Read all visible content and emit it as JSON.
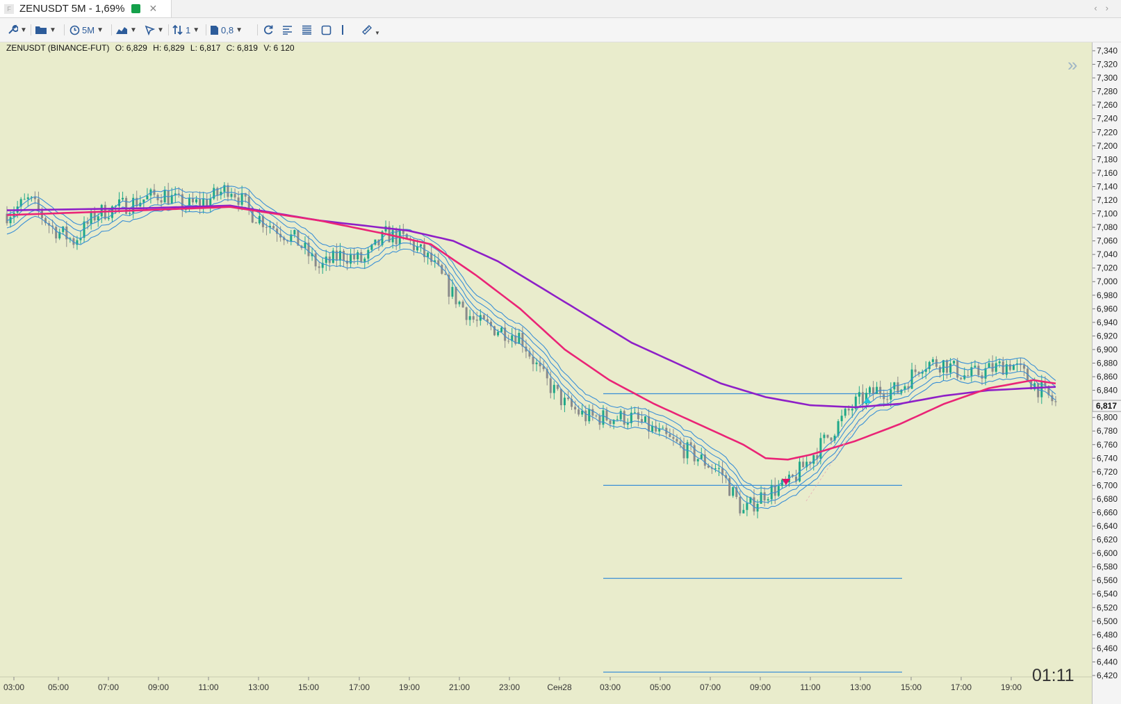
{
  "tab": {
    "icon_letter": "F",
    "title": "ZENUSDT 5M - 1,69%",
    "status_color": "#14a04a"
  },
  "toolbar": {
    "items": [
      {
        "name": "wrench-icon",
        "label": ""
      },
      {
        "name": "folder-icon",
        "label": ""
      },
      {
        "name": "timeframe",
        "label": "5M"
      },
      {
        "name": "chart-type-icon",
        "label": ""
      },
      {
        "name": "cursor-icon",
        "label": ""
      },
      {
        "name": "scale-selector",
        "label": "1"
      },
      {
        "name": "page-scale",
        "label": "0,8"
      },
      {
        "name": "refresh-icon",
        "label": ""
      },
      {
        "name": "align-icon",
        "label": ""
      },
      {
        "name": "list-icon",
        "label": ""
      },
      {
        "name": "square-icon",
        "label": ""
      },
      {
        "name": "vline-icon",
        "label": ""
      },
      {
        "name": "ruler-icon",
        "label": ""
      }
    ]
  },
  "info": {
    "symbol": "ZENUSDT (BINANCE-FUT)",
    "open": "O: 6,829",
    "high": "H: 6,829",
    "low": "L: 6,817",
    "close": "C: 6,819",
    "volume": "V: 6 120"
  },
  "clock": "01:11",
  "current_price": "6,817",
  "colors": {
    "background": "#e9eccc",
    "bull": "#1fa888",
    "bear": "#8a8a8a",
    "ribbon": "#3a8fd6",
    "ma_slow": "#8e1fc7",
    "ma_mid": "#ea2476",
    "levels": "#3a8fd6"
  },
  "chart_data": {
    "type": "candlestick",
    "symbol": "ZENUSDT",
    "timeframe": "5M",
    "x_ticks": [
      "03:00",
      "05:00",
      "07:00",
      "09:00",
      "11:00",
      "13:00",
      "15:00",
      "17:00",
      "19:00",
      "21:00",
      "23:00",
      "Сен28",
      "03:00",
      "05:00",
      "07:00",
      "09:00",
      "11:00",
      "13:00",
      "15:00",
      "17:00",
      "19:00"
    ],
    "y_ticks": [
      "7,340",
      "7,320",
      "7,300",
      "7,280",
      "7,260",
      "7,240",
      "7,220",
      "7,200",
      "7,180",
      "7,160",
      "7,140",
      "7,120",
      "7,100",
      "7,080",
      "7,060",
      "7,040",
      "7,020",
      "7,000",
      "6,980",
      "6,960",
      "6,940",
      "6,920",
      "6,900",
      "6,880",
      "6,860",
      "6,840",
      "6,820",
      "6,800",
      "6,780",
      "6,760",
      "6,740",
      "6,720",
      "6,700",
      "6,680",
      "6,660",
      "6,640",
      "6,620",
      "6,600",
      "6,580",
      "6,560",
      "6,540",
      "6,520",
      "6,500",
      "6,480",
      "6,460",
      "6,440",
      "6,420"
    ],
    "ylim": [
      6.42,
      7.34
    ],
    "price_path_hours": [
      [
        0,
        7.1
      ],
      [
        1,
        7.12
      ],
      [
        2,
        7.08
      ],
      [
        3,
        7.06
      ],
      [
        4,
        7.1
      ],
      [
        5,
        7.11
      ],
      [
        6,
        7.12
      ],
      [
        7,
        7.13
      ],
      [
        8,
        7.11
      ],
      [
        9,
        7.12
      ],
      [
        10,
        7.14
      ],
      [
        11,
        7.1
      ],
      [
        12,
        7.08
      ],
      [
        13,
        7.06
      ],
      [
        14,
        7.02
      ],
      [
        15,
        7.04
      ],
      [
        16,
        7.03
      ],
      [
        17,
        7.07
      ],
      [
        18,
        7.06
      ],
      [
        19,
        7.03
      ],
      [
        20,
        6.98
      ],
      [
        21,
        6.94
      ],
      [
        22,
        6.93
      ],
      [
        23,
        6.92
      ],
      [
        24,
        6.86
      ],
      [
        25,
        6.82
      ],
      [
        26,
        6.8
      ],
      [
        27,
        6.8
      ],
      [
        28,
        6.8
      ],
      [
        29,
        6.78
      ],
      [
        30,
        6.76
      ],
      [
        31,
        6.74
      ],
      [
        32,
        6.72
      ],
      [
        33,
        6.66
      ],
      [
        34,
        6.69
      ],
      [
        35,
        6.7
      ],
      [
        36,
        6.74
      ],
      [
        37,
        6.78
      ],
      [
        38,
        6.82
      ],
      [
        39,
        6.84
      ],
      [
        40,
        6.84
      ],
      [
        41,
        6.88
      ],
      [
        42,
        6.88
      ],
      [
        43,
        6.86
      ],
      [
        44,
        6.87
      ],
      [
        45,
        6.88
      ],
      [
        46,
        6.85
      ],
      [
        47,
        6.82
      ]
    ],
    "ma_slow_hours": [
      [
        0,
        7.105
      ],
      [
        6,
        7.108
      ],
      [
        10,
        7.112
      ],
      [
        14,
        7.09
      ],
      [
        18,
        7.075
      ],
      [
        20,
        7.06
      ],
      [
        22,
        7.03
      ],
      [
        24,
        6.99
      ],
      [
        26,
        6.95
      ],
      [
        28,
        6.91
      ],
      [
        30,
        6.88
      ],
      [
        32,
        6.85
      ],
      [
        34,
        6.83
      ],
      [
        36,
        6.818
      ],
      [
        38,
        6.815
      ],
      [
        40,
        6.82
      ],
      [
        42,
        6.832
      ],
      [
        44,
        6.84
      ],
      [
        47,
        6.845
      ]
    ],
    "ma_mid_hours": [
      [
        0,
        7.098
      ],
      [
        6,
        7.105
      ],
      [
        10,
        7.11
      ],
      [
        14,
        7.09
      ],
      [
        17,
        7.07
      ],
      [
        19,
        7.055
      ],
      [
        21,
        7.01
      ],
      [
        23,
        6.96
      ],
      [
        25,
        6.9
      ],
      [
        27,
        6.855
      ],
      [
        29,
        6.82
      ],
      [
        31,
        6.79
      ],
      [
        33,
        6.76
      ],
      [
        34,
        6.74
      ],
      [
        35,
        6.738
      ],
      [
        36,
        6.745
      ],
      [
        38,
        6.765
      ],
      [
        40,
        6.79
      ],
      [
        42,
        6.82
      ],
      [
        44,
        6.843
      ],
      [
        46,
        6.855
      ],
      [
        47,
        6.85
      ]
    ],
    "horizontal_levels": [
      6.835,
      6.7,
      6.563,
      6.425
    ],
    "current_price": 6.817
  }
}
